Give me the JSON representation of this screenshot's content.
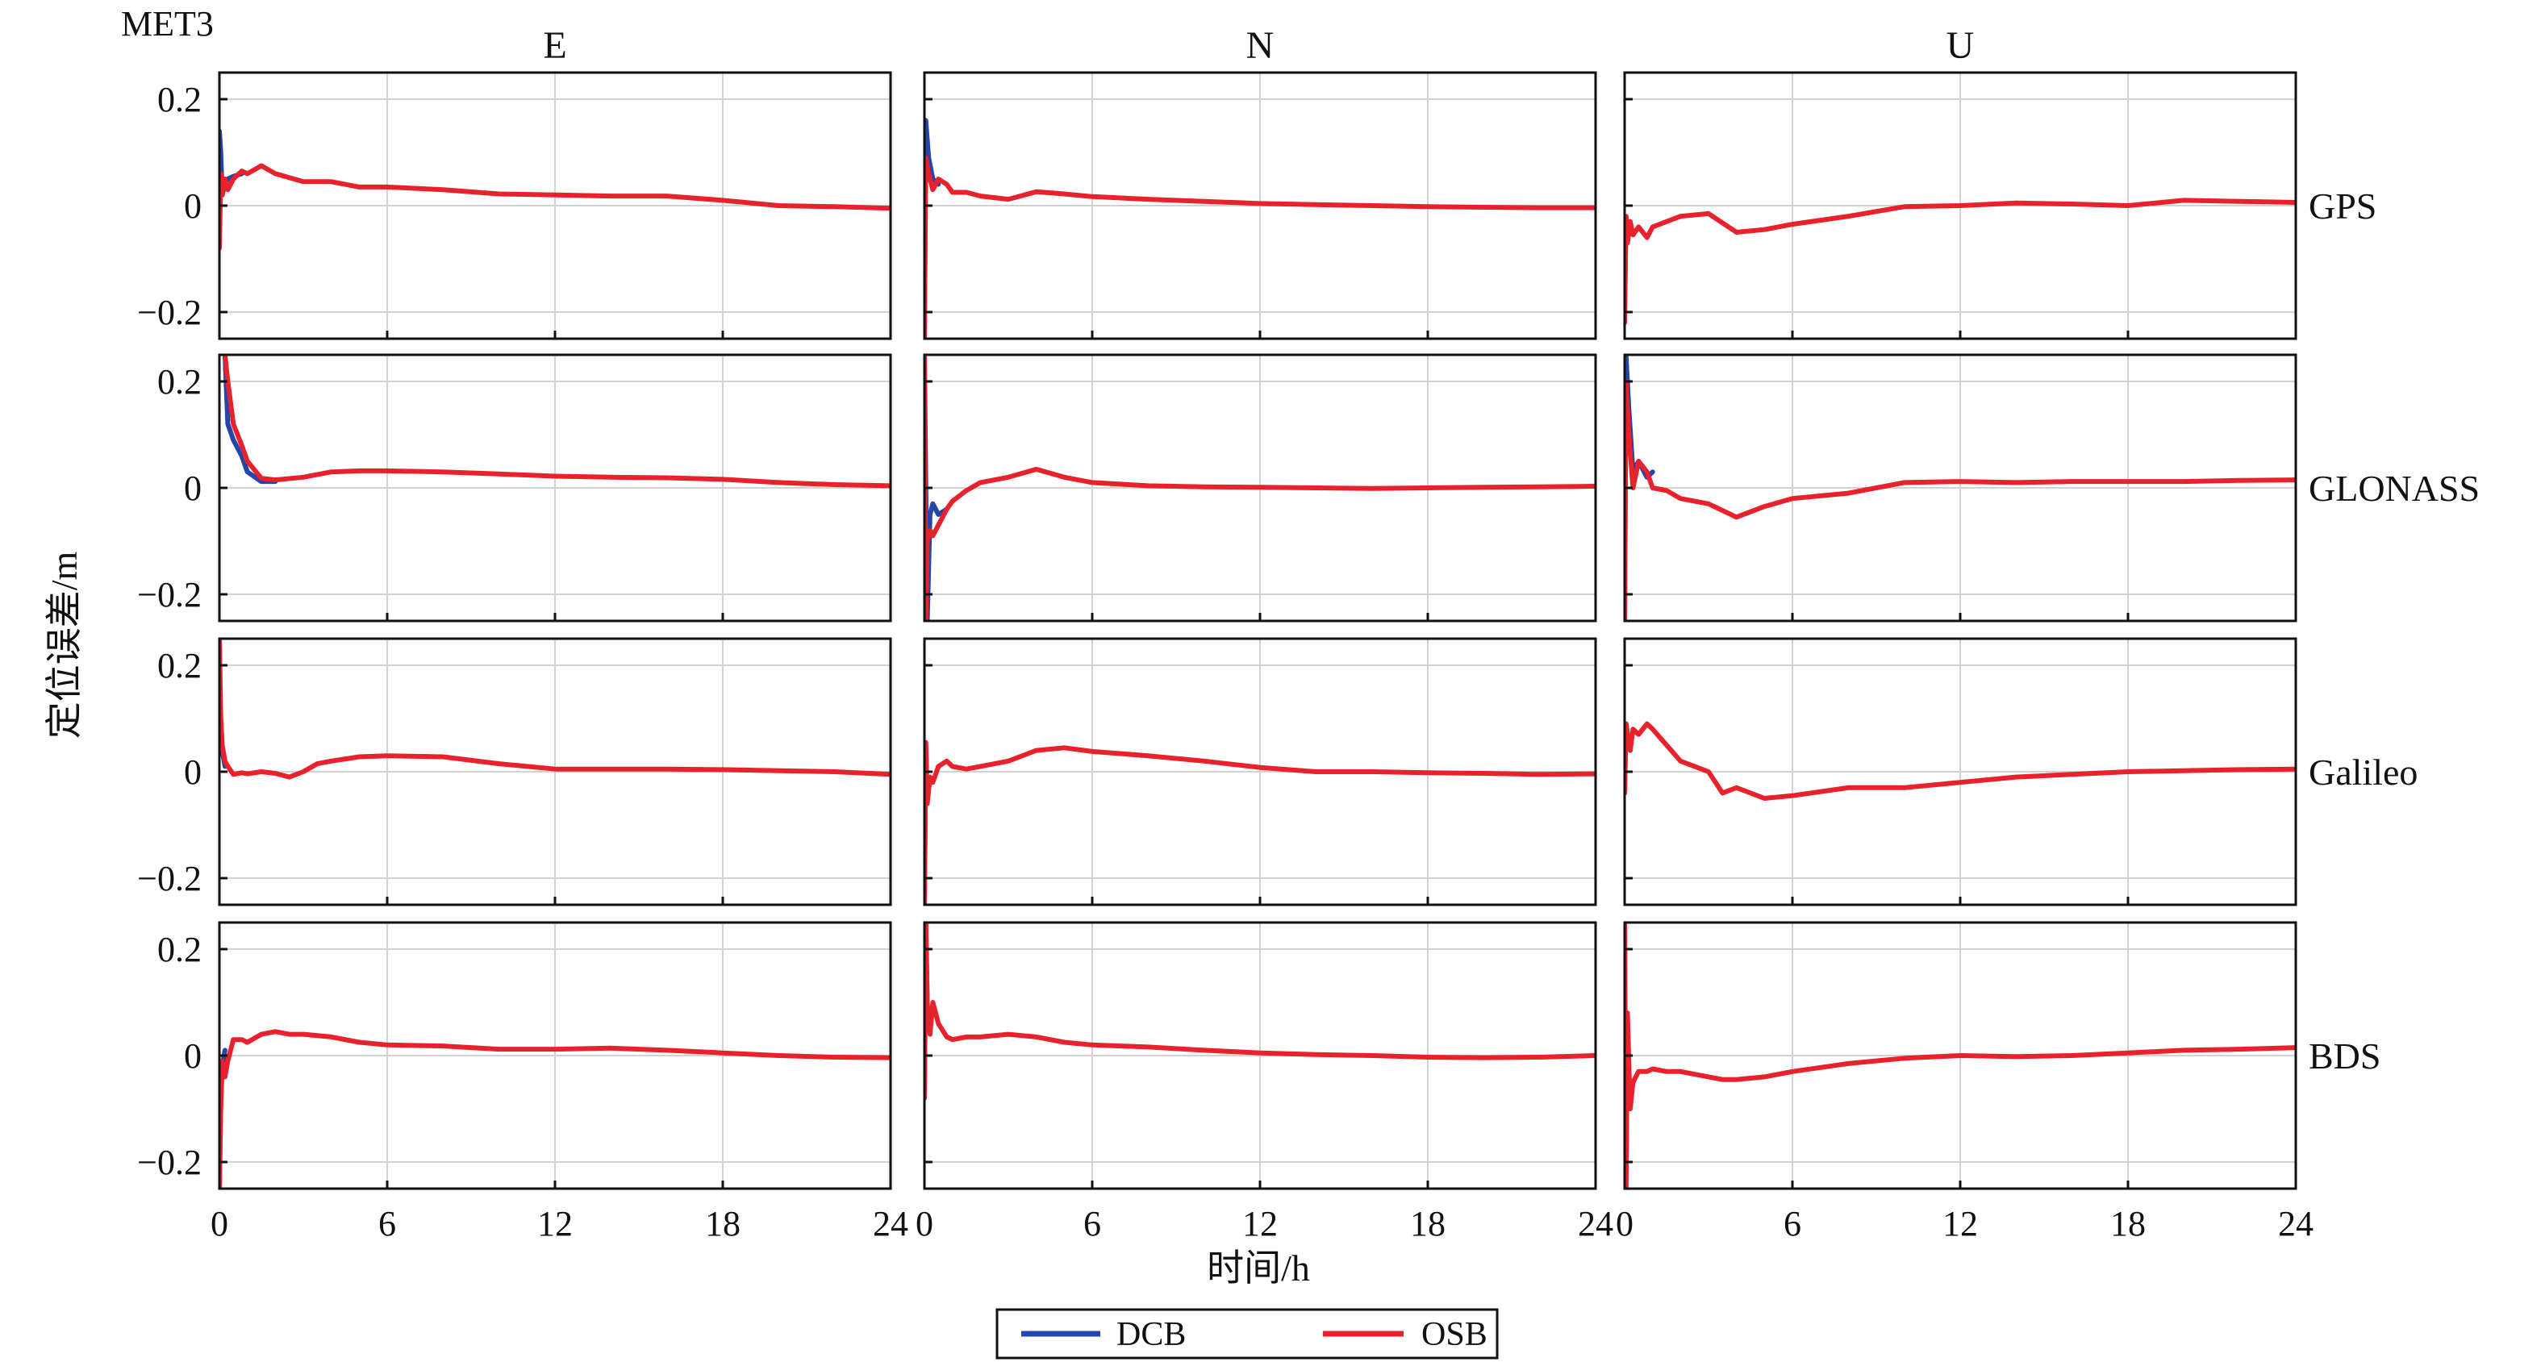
{
  "chart_data": {
    "type": "line",
    "figure_label": "MET3",
    "xlabel": "时间/h",
    "ylabel": "定位误差/m",
    "xlim": [
      0,
      24
    ],
    "ylim": [
      -0.25,
      0.25
    ],
    "xticks": [
      "0",
      "6",
      "12",
      "18",
      "24"
    ],
    "yticks": [
      "0.2",
      "0",
      "−0.2"
    ],
    "grid": true,
    "legend": {
      "placement": "bottom-center",
      "entries": [
        "DCB",
        "OSB"
      ]
    },
    "colors": {
      "DCB": "#2346a8",
      "OSB": "#e8222c"
    },
    "columns": [
      "E",
      "N",
      "U"
    ],
    "rows": [
      "GPS",
      "GLONASS",
      "Galileo",
      "BDS"
    ],
    "panels": [
      {
        "row": "GPS",
        "col": "E",
        "series": [
          {
            "name": "DCB",
            "x": [
              0,
              0.05,
              0.1,
              0.2,
              0.3,
              0.5,
              0.8
            ],
            "y": [
              0.14,
              0.1,
              0.02,
              0.04,
              0.05,
              0.055,
              0.06
            ]
          },
          {
            "name": "OSB",
            "x": [
              0,
              0.05,
              0.1,
              0.2,
              0.3,
              0.5,
              0.8,
              1,
              1.5,
              2,
              3,
              4,
              5,
              6,
              8,
              10,
              12,
              14,
              16,
              18,
              20,
              22,
              24
            ],
            "y": [
              -0.08,
              0.06,
              0.02,
              0.05,
              0.03,
              0.05,
              0.065,
              0.06,
              0.075,
              0.06,
              0.045,
              0.045,
              0.035,
              0.035,
              0.03,
              0.022,
              0.02,
              0.018,
              0.018,
              0.01,
              0.0,
              -0.002,
              -0.005
            ]
          }
        ]
      },
      {
        "row": "GPS",
        "col": "N",
        "series": [
          {
            "name": "DCB",
            "x": [
              0,
              0.05,
              0.15,
              0.3,
              0.5
            ],
            "y": [
              -0.25,
              0.16,
              0.09,
              0.05,
              0.04
            ]
          },
          {
            "name": "OSB",
            "x": [
              0,
              0.05,
              0.15,
              0.3,
              0.5,
              0.8,
              1,
              1.5,
              2,
              3,
              4,
              5,
              6,
              8,
              10,
              12,
              14,
              16,
              18,
              20,
              22,
              24
            ],
            "y": [
              -0.25,
              0.09,
              0.06,
              0.03,
              0.05,
              0.04,
              0.025,
              0.025,
              0.018,
              0.012,
              0.026,
              0.022,
              0.017,
              0.012,
              0.008,
              0.004,
              0.002,
              0.0,
              -0.002,
              -0.003,
              -0.004,
              -0.004
            ]
          }
        ]
      },
      {
        "row": "GPS",
        "col": "U",
        "series": [
          {
            "name": "DCB",
            "x": [
              0,
              0.05,
              0.1,
              0.2
            ],
            "y": [
              -0.2,
              -0.02,
              -0.06,
              -0.03
            ]
          },
          {
            "name": "OSB",
            "x": [
              0,
              0.05,
              0.1,
              0.2,
              0.3,
              0.5,
              0.8,
              1,
              1.5,
              2,
              3,
              4,
              5,
              6,
              8,
              10,
              12,
              14,
              16,
              18,
              20,
              22,
              24
            ],
            "y": [
              -0.22,
              -0.02,
              -0.07,
              -0.03,
              -0.055,
              -0.04,
              -0.06,
              -0.04,
              -0.03,
              -0.02,
              -0.015,
              -0.05,
              -0.045,
              -0.035,
              -0.02,
              -0.002,
              0.0,
              0.005,
              0.003,
              0.0,
              0.01,
              0.008,
              0.006
            ]
          }
        ]
      },
      {
        "row": "GLONASS",
        "col": "E",
        "series": [
          {
            "name": "DCB",
            "x": [
              0.2,
              0.3,
              0.5,
              0.8,
              1,
              1.5,
              2
            ],
            "y": [
              0.25,
              0.12,
              0.09,
              0.06,
              0.03,
              0.012,
              0.012
            ]
          },
          {
            "name": "OSB",
            "x": [
              0.2,
              0.3,
              0.5,
              0.8,
              1,
              1.5,
              2,
              3,
              4,
              5,
              6,
              8,
              10,
              12,
              14,
              16,
              18,
              20,
              22,
              24
            ],
            "y": [
              0.25,
              0.2,
              0.12,
              0.08,
              0.05,
              0.018,
              0.015,
              0.02,
              0.03,
              0.032,
              0.032,
              0.03,
              0.026,
              0.022,
              0.02,
              0.019,
              0.016,
              0.01,
              0.006,
              0.004
            ]
          }
        ]
      },
      {
        "row": "GLONASS",
        "col": "N",
        "series": [
          {
            "name": "DCB",
            "x": [
              0,
              0.1,
              0.2,
              0.3,
              0.5,
              0.8
            ],
            "y": [
              0.25,
              -0.25,
              -0.05,
              -0.03,
              -0.05,
              -0.04
            ]
          },
          {
            "name": "OSB",
            "x": [
              0,
              0.05,
              0.1,
              0.2,
              0.3,
              0.5,
              0.8,
              1,
              1.5,
              2,
              3,
              4,
              5,
              6,
              8,
              10,
              12,
              14,
              16,
              18,
              20,
              22,
              24
            ],
            "y": [
              0.25,
              -0.25,
              -0.1,
              -0.08,
              -0.09,
              -0.07,
              -0.04,
              -0.025,
              -0.005,
              0.01,
              0.02,
              0.035,
              0.02,
              0.01,
              0.004,
              0.002,
              0.001,
              0.0,
              -0.001,
              0.0,
              0.001,
              0.002,
              0.003
            ]
          }
        ]
      },
      {
        "row": "GLONASS",
        "col": "U",
        "series": [
          {
            "name": "DCB",
            "x": [
              0,
              0.05,
              0.15,
              0.3,
              0.5,
              0.8,
              1
            ],
            "y": [
              -0.25,
              0.25,
              0.15,
              0.03,
              0.05,
              0.02,
              0.03
            ]
          },
          {
            "name": "OSB",
            "x": [
              0,
              0.05,
              0.15,
              0.3,
              0.5,
              0.8,
              1,
              1.5,
              2,
              3,
              4,
              5,
              6,
              8,
              10,
              12,
              14,
              16,
              18,
              20,
              22,
              24
            ],
            "y": [
              -0.25,
              0.2,
              0.1,
              0.0,
              0.05,
              0.03,
              0.0,
              -0.005,
              -0.02,
              -0.03,
              -0.055,
              -0.035,
              -0.02,
              -0.01,
              0.01,
              0.012,
              0.01,
              0.012,
              0.012,
              0.012,
              0.014,
              0.015
            ]
          }
        ]
      },
      {
        "row": "Galileo",
        "col": "E",
        "series": [
          {
            "name": "DCB",
            "x": [
              0,
              0.05,
              0.1,
              0.2
            ],
            "y": [
              0.25,
              0.06,
              0.04,
              0.01
            ]
          },
          {
            "name": "OSB",
            "x": [
              0,
              0.05,
              0.1,
              0.2,
              0.3,
              0.5,
              0.8,
              1,
              1.5,
              2,
              2.5,
              3,
              3.5,
              4,
              5,
              6,
              8,
              10,
              12,
              14,
              16,
              18,
              20,
              22,
              24
            ],
            "y": [
              0.25,
              0.1,
              0.05,
              0.02,
              0.01,
              -0.005,
              -0.002,
              -0.004,
              0.0,
              -0.003,
              -0.01,
              0.0,
              0.015,
              0.02,
              0.028,
              0.03,
              0.028,
              0.015,
              0.005,
              0.005,
              0.005,
              0.004,
              0.002,
              0.0,
              -0.005
            ]
          }
        ]
      },
      {
        "row": "Galileo",
        "col": "N",
        "series": [
          {
            "name": "DCB",
            "x": [
              0,
              0.05,
              0.1
            ],
            "y": [
              -0.25,
              0.05,
              -0.06
            ]
          },
          {
            "name": "OSB",
            "x": [
              0,
              0.05,
              0.1,
              0.2,
              0.3,
              0.5,
              0.8,
              1,
              1.5,
              2,
              3,
              4,
              5,
              6,
              8,
              10,
              12,
              14,
              16,
              18,
              20,
              22,
              24
            ],
            "y": [
              -0.25,
              0.055,
              -0.06,
              -0.01,
              -0.02,
              0.01,
              0.02,
              0.01,
              0.005,
              0.01,
              0.02,
              0.04,
              0.045,
              0.038,
              0.03,
              0.02,
              0.008,
              0.0,
              0.0,
              -0.002,
              -0.003,
              -0.005,
              -0.004
            ]
          }
        ]
      },
      {
        "row": "Galileo",
        "col": "U",
        "series": [
          {
            "name": "DCB",
            "x": [
              0,
              0.05,
              0.2
            ],
            "y": [
              -0.04,
              0.09,
              0.04
            ]
          },
          {
            "name": "OSB",
            "x": [
              0,
              0.05,
              0.2,
              0.3,
              0.5,
              0.8,
              1,
              1.5,
              2,
              3,
              3.5,
              4,
              5,
              6,
              8,
              10,
              12,
              14,
              16,
              18,
              20,
              22,
              24
            ],
            "y": [
              -0.04,
              0.09,
              0.04,
              0.08,
              0.07,
              0.09,
              0.08,
              0.05,
              0.02,
              0.0,
              -0.04,
              -0.03,
              -0.05,
              -0.045,
              -0.03,
              -0.03,
              -0.02,
              -0.01,
              -0.005,
              0.0,
              0.002,
              0.004,
              0.005
            ]
          }
        ]
      },
      {
        "row": "BDS",
        "col": "E",
        "series": [
          {
            "name": "DCB",
            "x": [
              0,
              0.05,
              0.1,
              0.2
            ],
            "y": [
              -0.25,
              -0.08,
              -0.02,
              0.01
            ]
          },
          {
            "name": "OSB",
            "x": [
              0,
              0.05,
              0.1,
              0.2,
              0.3,
              0.5,
              0.8,
              1,
              1.5,
              2,
              2.5,
              3,
              4,
              5,
              6,
              8,
              10,
              12,
              14,
              16,
              18,
              20,
              22,
              24
            ],
            "y": [
              -0.25,
              -0.1,
              -0.01,
              -0.04,
              -0.01,
              0.03,
              0.03,
              0.025,
              0.04,
              0.045,
              0.04,
              0.04,
              0.035,
              0.025,
              0.02,
              0.018,
              0.012,
              0.012,
              0.014,
              0.01,
              0.005,
              0.0,
              -0.003,
              -0.004
            ]
          }
        ]
      },
      {
        "row": "BDS",
        "col": "N",
        "series": [
          {
            "name": "DCB",
            "x": [
              0,
              0.05,
              0.1
            ],
            "y": [
              -0.08,
              0.25,
              0.1
            ]
          },
          {
            "name": "OSB",
            "x": [
              0,
              0.05,
              0.1,
              0.2,
              0.3,
              0.5,
              0.8,
              1,
              1.5,
              2,
              3,
              4,
              5,
              6,
              8,
              10,
              12,
              14,
              16,
              18,
              20,
              22,
              24
            ],
            "y": [
              -0.08,
              0.25,
              0.1,
              0.04,
              0.1,
              0.06,
              0.035,
              0.03,
              0.035,
              0.035,
              0.04,
              0.035,
              0.025,
              0.02,
              0.016,
              0.01,
              0.005,
              0.002,
              0.0,
              -0.003,
              -0.004,
              -0.003,
              0.0
            ]
          }
        ]
      },
      {
        "row": "BDS",
        "col": "U",
        "series": [
          {
            "name": "DCB",
            "x": [
              0,
              0.05,
              0.1
            ],
            "y": [
              0.25,
              -0.25,
              0.08
            ]
          },
          {
            "name": "OSB",
            "x": [
              0,
              0.05,
              0.1,
              0.2,
              0.3,
              0.5,
              0.8,
              1,
              1.5,
              2,
              3,
              3.5,
              4,
              5,
              6,
              8,
              10,
              12,
              14,
              16,
              18,
              20,
              22,
              24
            ],
            "y": [
              0.25,
              -0.25,
              0.08,
              -0.1,
              -0.05,
              -0.03,
              -0.03,
              -0.025,
              -0.03,
              -0.03,
              -0.04,
              -0.045,
              -0.045,
              -0.04,
              -0.03,
              -0.015,
              -0.005,
              0.0,
              -0.002,
              0.0,
              0.005,
              0.01,
              0.012,
              0.015
            ]
          }
        ]
      }
    ]
  }
}
